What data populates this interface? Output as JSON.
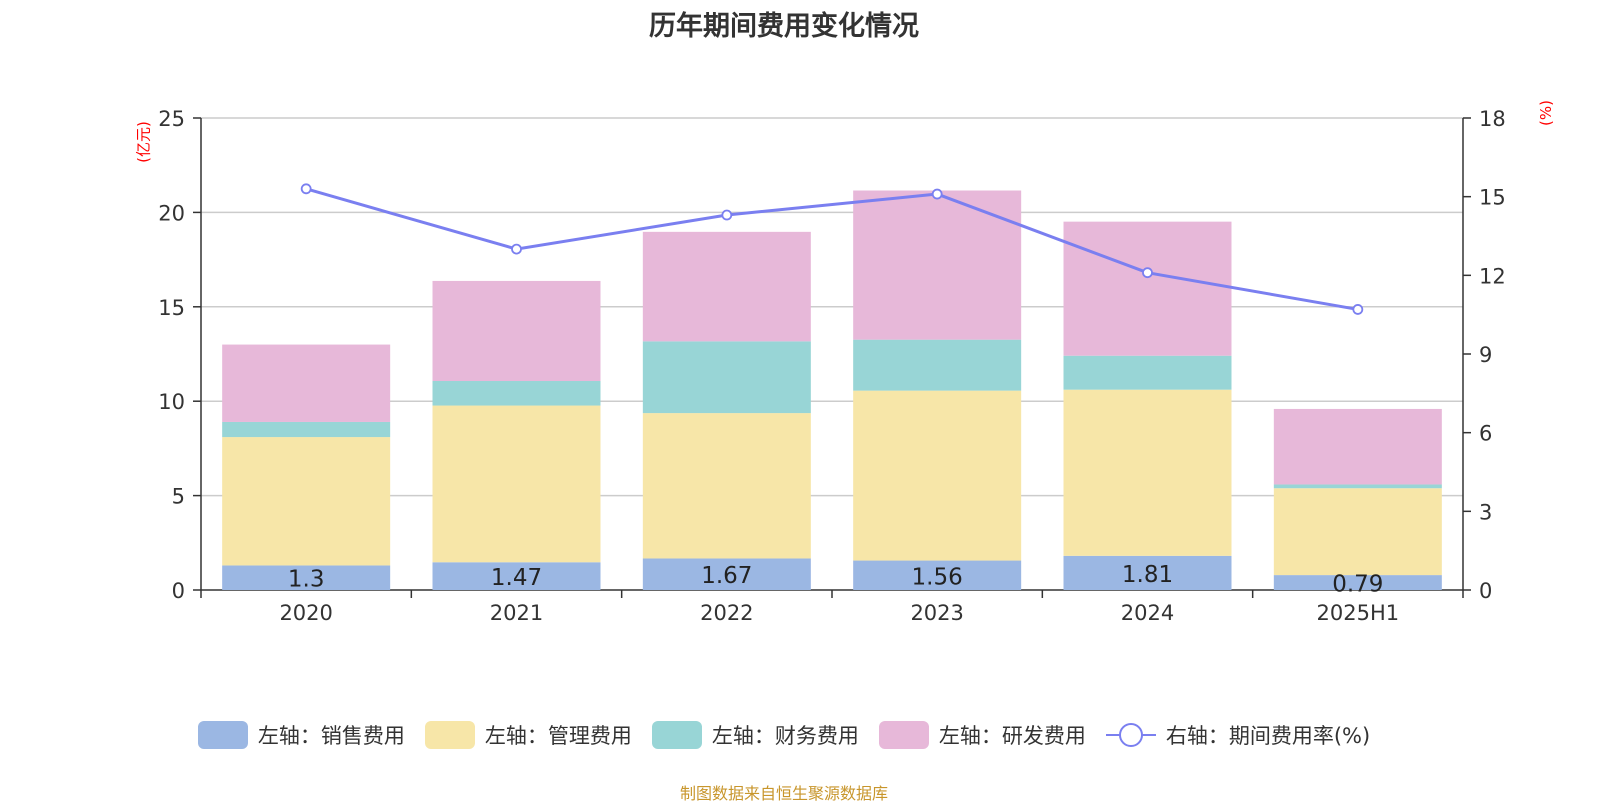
{
  "chart_data": {
    "type": "bar",
    "title": "历年期间费用变化情况",
    "categories": [
      "2020",
      "2021",
      "2022",
      "2023",
      "2024",
      "2025H1"
    ],
    "left_axis": {
      "unit": "(亿元)",
      "range": [
        0,
        25
      ],
      "ticks": [
        0,
        5,
        10,
        15,
        20,
        25
      ]
    },
    "right_axis": {
      "unit": "(%)",
      "range": [
        0,
        18
      ],
      "ticks": [
        0,
        3,
        6,
        9,
        12,
        15,
        18
      ]
    },
    "series": [
      {
        "name": "左轴：销售费用",
        "type": "bar",
        "axis": "left",
        "color": "#9bb7e3",
        "values": [
          1.3,
          1.47,
          1.67,
          1.56,
          1.81,
          0.79
        ],
        "show_labels": true
      },
      {
        "name": "左轴：管理费用",
        "type": "bar",
        "axis": "left",
        "color": "#f7e6a8",
        "values": [
          6.8,
          8.3,
          7.7,
          9.0,
          8.8,
          4.6
        ]
      },
      {
        "name": "左轴：财务费用",
        "type": "bar",
        "axis": "left",
        "color": "#98d5d6",
        "values": [
          0.8,
          1.3,
          3.8,
          2.7,
          1.8,
          0.2
        ]
      },
      {
        "name": "左轴：研发费用",
        "type": "bar",
        "axis": "left",
        "color": "#e7b8d9",
        "values": [
          4.1,
          5.3,
          5.8,
          7.9,
          7.1,
          4.0
        ]
      },
      {
        "name": "右轴：期间费用率(%)",
        "type": "line",
        "axis": "right",
        "color": "#7a7ff0",
        "values": [
          15.3,
          13.0,
          14.3,
          15.1,
          12.1,
          10.7
        ]
      }
    ],
    "grid": true,
    "legend_position": "bottom"
  },
  "source_note": "制图数据来自恒生聚源数据库"
}
